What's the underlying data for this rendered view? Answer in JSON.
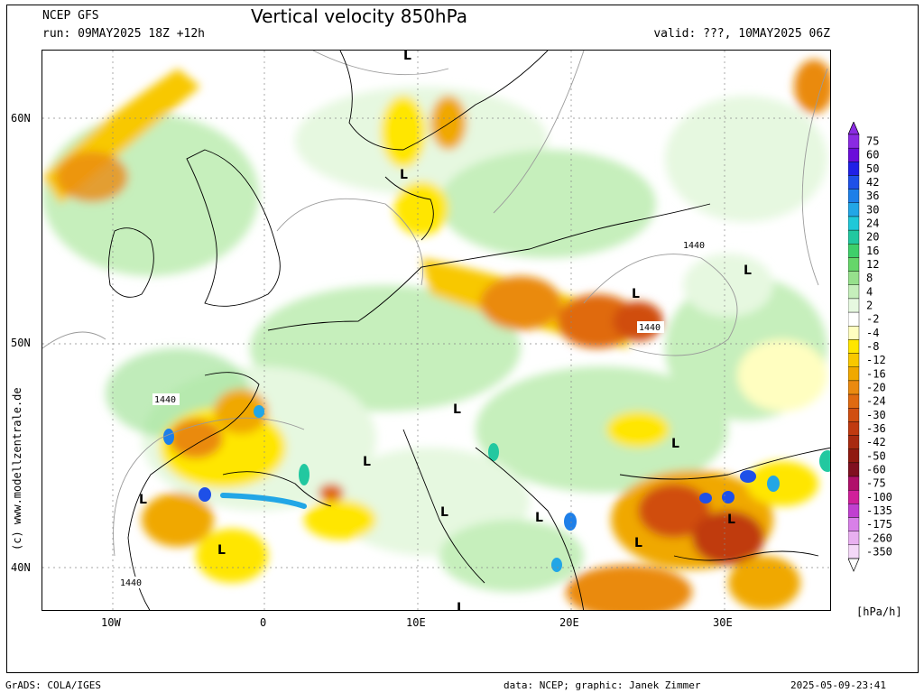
{
  "header": {
    "model": "NCEP GFS",
    "run": "run: 09MAY2025 18Z +12h",
    "title": "Vertical velocity 850hPa",
    "valid": "valid: ???, 10MAY2025 06Z"
  },
  "axes": {
    "lat_labels": [
      "60N",
      "50N",
      "40N"
    ],
    "lon_labels": [
      "10W",
      "0",
      "10E",
      "20E",
      "30E"
    ]
  },
  "side_credit": "(c) www.modellzentrale.de",
  "footer": {
    "left": "GrADS: COLA/IGES",
    "middle": "data: NCEP; graphic: Janek Zimmer",
    "right": "2025-05-09-23:41"
  },
  "legend": {
    "unit": "[hPa/h]",
    "entries": [
      {
        "label": "75",
        "color": "#8a2be2"
      },
      {
        "label": "60",
        "color": "#6a0dd9"
      },
      {
        "label": "50",
        "color": "#2020e6"
      },
      {
        "label": "42",
        "color": "#1e50e8"
      },
      {
        "label": "36",
        "color": "#1e7fe8"
      },
      {
        "label": "30",
        "color": "#22a6e6"
      },
      {
        "label": "24",
        "color": "#20c8d8"
      },
      {
        "label": "20",
        "color": "#22c8a0"
      },
      {
        "label": "16",
        "color": "#3ecf6a"
      },
      {
        "label": "12",
        "color": "#66d66a"
      },
      {
        "label": "8",
        "color": "#96e08c"
      },
      {
        "label": "4",
        "color": "#c6efbc"
      },
      {
        "label": "2",
        "color": "#e6f8e0"
      },
      {
        "label": "-2",
        "color": "#ffffff"
      },
      {
        "label": "-4",
        "color": "#fffec0"
      },
      {
        "label": "-8",
        "color": "#ffe600"
      },
      {
        "label": "-12",
        "color": "#f8c800"
      },
      {
        "label": "-16",
        "color": "#f0a800"
      },
      {
        "label": "-20",
        "color": "#ea8a10"
      },
      {
        "label": "-24",
        "color": "#e06a10"
      },
      {
        "label": "-30",
        "color": "#d04e10"
      },
      {
        "label": "-36",
        "color": "#c03a10"
      },
      {
        "label": "-42",
        "color": "#a82a10"
      },
      {
        "label": "-50",
        "color": "#901a10"
      },
      {
        "label": "-60",
        "color": "#801020"
      },
      {
        "label": "-75",
        "color": "#b0106a"
      },
      {
        "label": "-100",
        "color": "#d0209a"
      },
      {
        "label": "-135",
        "color": "#c040d0"
      },
      {
        "label": "-175",
        "color": "#d880e8"
      },
      {
        "label": "-260",
        "color": "#e8b0f0"
      },
      {
        "label": "-350",
        "color": "#f4d8f8"
      }
    ]
  },
  "map_labels": {
    "low": "L",
    "isohypse": "1440"
  }
}
